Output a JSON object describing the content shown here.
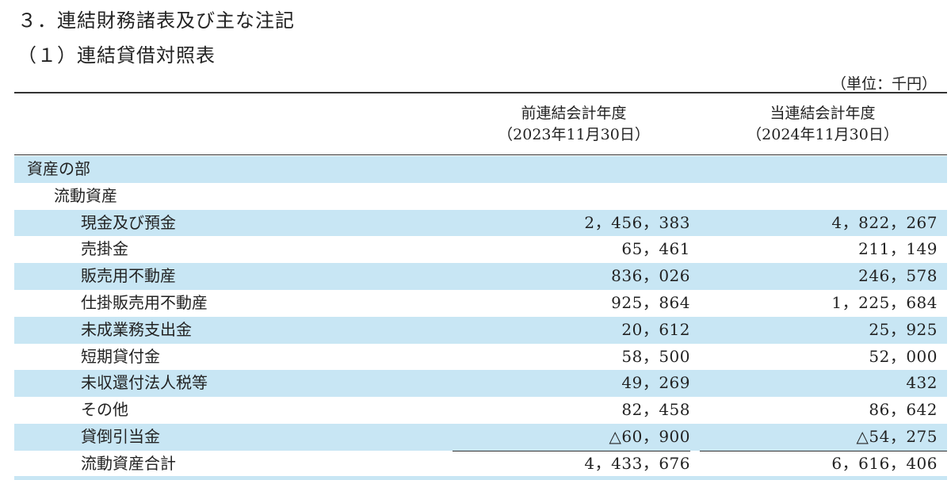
{
  "heading": {
    "section": "３．連結財務諸表及び主な注記",
    "subsection": "（１）連結貸借対照表"
  },
  "unit_label": "（単位：千円）",
  "columns": {
    "prev": {
      "title": "前連結会計年度",
      "date": "（2023年11月30日）"
    },
    "cur": {
      "title": "当連結会計年度",
      "date": "（2024年11月30日）"
    }
  },
  "rows": [
    {
      "label": "資産の部",
      "prev": "",
      "cur": ""
    },
    {
      "label": "流動資産",
      "prev": "",
      "cur": ""
    },
    {
      "label": "現金及び預金",
      "prev": "2，456，383",
      "cur": "4，822，267"
    },
    {
      "label": "売掛金",
      "prev": "65，461",
      "cur": "211，149"
    },
    {
      "label": "販売用不動産",
      "prev": "836，026",
      "cur": "246，578"
    },
    {
      "label": "仕掛販売用不動産",
      "prev": "925，864",
      "cur": "1，225，684"
    },
    {
      "label": "未成業務支出金",
      "prev": "20，612",
      "cur": "25，925"
    },
    {
      "label": "短期貸付金",
      "prev": "58，500",
      "cur": "52，000"
    },
    {
      "label": "未収還付法人税等",
      "prev": "49，269",
      "cur": "432"
    },
    {
      "label": "その他",
      "prev": "82，458",
      "cur": "86，642"
    },
    {
      "label": "貸倒引当金",
      "prev": "△60，900",
      "cur": "△54，275"
    },
    {
      "label": "流動資産合計",
      "prev": "4，433，676",
      "cur": "6，616，406"
    }
  ]
}
